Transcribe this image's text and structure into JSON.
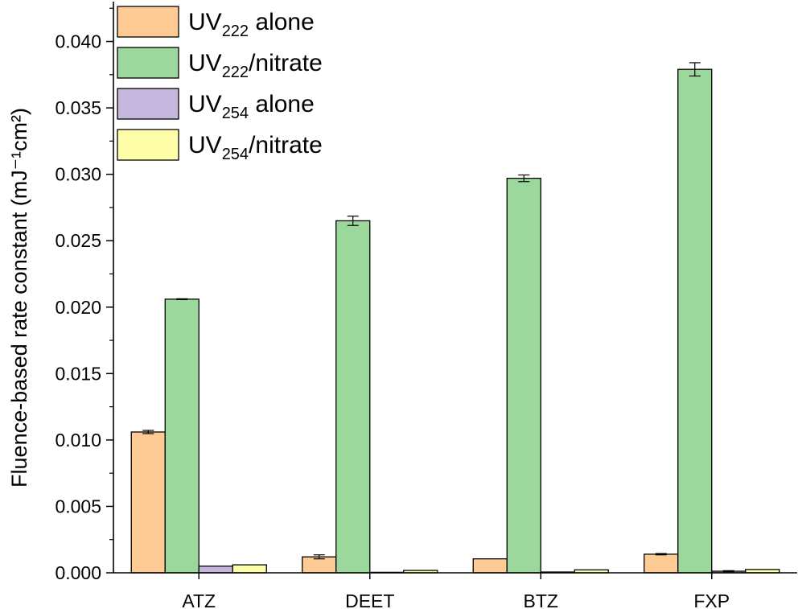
{
  "chart_data": {
    "type": "bar",
    "title": "",
    "xlabel": "",
    "ylabel": "Fluence-based rate constant (mJ⁻¹cm²)",
    "ylim": [
      0,
      0.043
    ],
    "y_ticks": [
      "0.000",
      "0.005",
      "0.010",
      "0.015",
      "0.020",
      "0.025",
      "0.030",
      "0.035",
      "0.040"
    ],
    "categories": [
      "ATZ",
      "DEET",
      "BTZ",
      "FXP"
    ],
    "legend_position": "top-left",
    "grid": false,
    "series": [
      {
        "name": "UV222 alone",
        "label_main": "UV",
        "label_sub": "222",
        "label_rest": " alone",
        "color": "#FDCB93",
        "values": [
          0.0106,
          0.0012,
          0.00105,
          0.0014
        ],
        "errors": [
          0.00012,
          0.00015,
          0.0,
          5e-05
        ]
      },
      {
        "name": "UV222/nitrate",
        "label_main": "UV",
        "label_sub": "222",
        "label_rest": "/nitrate",
        "color": "#9CD79C",
        "values": [
          0.0206,
          0.0265,
          0.0297,
          0.0379
        ],
        "errors": [
          3e-05,
          0.00035,
          0.00025,
          0.0005
        ]
      },
      {
        "name": "UV254 alone",
        "label_main": "UV",
        "label_sub": "254",
        "label_rest": " alone",
        "color": "#C5B6DE",
        "values": [
          0.0005,
          3e-05,
          6e-05,
          0.00012
        ],
        "errors": [
          0.0,
          0.0,
          0.0,
          4e-05
        ]
      },
      {
        "name": "UV254/nitrate",
        "label_main": "UV",
        "label_sub": "254",
        "label_rest": "/nitrate",
        "color": "#FFFFAA",
        "values": [
          0.0006,
          0.00018,
          0.00022,
          0.00025
        ],
        "errors": [
          0.0,
          0.0,
          0.0,
          0.0
        ]
      }
    ]
  }
}
